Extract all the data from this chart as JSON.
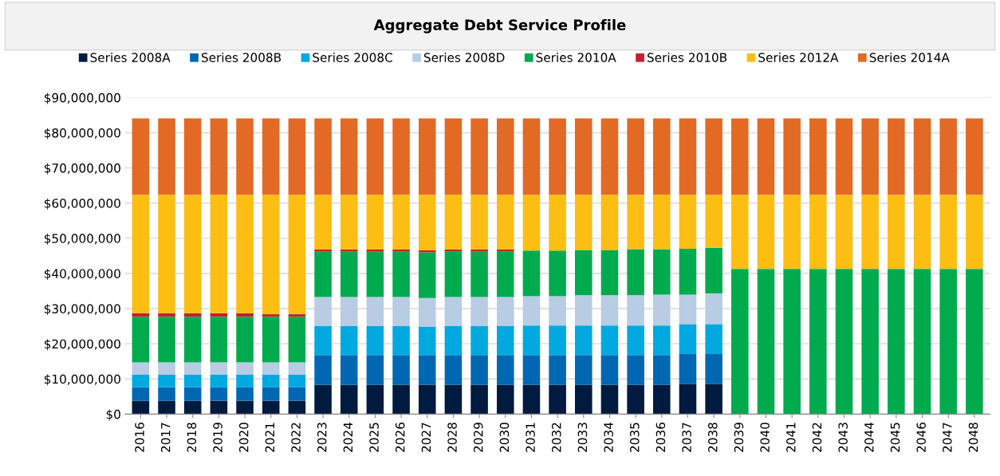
{
  "chart_data": {
    "type": "bar",
    "title": "Aggregate Debt Service Profile",
    "stacked": true,
    "grid": "y",
    "legend": "top",
    "categories": [
      "2016",
      "2017",
      "2018",
      "2019",
      "2020",
      "2021",
      "2022",
      "2023",
      "2024",
      "2025",
      "2026",
      "2027",
      "2028",
      "2029",
      "2030",
      "2031",
      "2032",
      "2033",
      "2034",
      "2035",
      "2036",
      "2037",
      "2038",
      "2039",
      "2040",
      "2041",
      "2042",
      "2043",
      "2044",
      "2045",
      "2046",
      "2047",
      "2048"
    ],
    "ylim": [
      0,
      90000000
    ],
    "yticks": [
      {
        "value": 0,
        "label": "$0"
      },
      {
        "value": 10000000,
        "label": "$10,000,000"
      },
      {
        "value": 20000000,
        "label": "$20,000,000"
      },
      {
        "value": 30000000,
        "label": "$30,000,000"
      },
      {
        "value": 40000000,
        "label": "$40,000,000"
      },
      {
        "value": 50000000,
        "label": "$50,000,000"
      },
      {
        "value": 60000000,
        "label": "$60,000,000"
      },
      {
        "value": 70000000,
        "label": "$70,000,000"
      },
      {
        "value": 80000000,
        "label": "$80,000,000"
      },
      {
        "value": 90000000,
        "label": "$90,000,000"
      }
    ],
    "series": [
      {
        "name": "Series 2008A",
        "color": "#001a40",
        "values": [
          3800000,
          3800000,
          3800000,
          3800000,
          3800000,
          3800000,
          3800000,
          8300000,
          8300000,
          8300000,
          8300000,
          8300000,
          8300000,
          8300000,
          8300000,
          8300000,
          8300000,
          8300000,
          8300000,
          8300000,
          8300000,
          8500000,
          8500000,
          null,
          null,
          null,
          null,
          null,
          null,
          null,
          null,
          null,
          null
        ]
      },
      {
        "name": "Series 2008B",
        "color": "#0068b3",
        "values": [
          3800000,
          3800000,
          3800000,
          3800000,
          3800000,
          3800000,
          3800000,
          8500000,
          8500000,
          8500000,
          8500000,
          8500000,
          8500000,
          8500000,
          8500000,
          8500000,
          8500000,
          8500000,
          8500000,
          8500000,
          8500000,
          8600000,
          8600000,
          null,
          null,
          null,
          null,
          null,
          null,
          null,
          null,
          null,
          null
        ]
      },
      {
        "name": "Series 2008C",
        "color": "#00a9e0",
        "values": [
          3600000,
          3600000,
          3600000,
          3600000,
          3600000,
          3600000,
          3600000,
          8300000,
          8300000,
          8300000,
          8300000,
          8000000,
          8300000,
          8300000,
          8300000,
          8400000,
          8400000,
          8400000,
          8400000,
          8400000,
          8400000,
          8500000,
          8500000,
          null,
          null,
          null,
          null,
          null,
          null,
          null,
          null,
          null,
          null
        ]
      },
      {
        "name": "Series 2008D",
        "color": "#b8cce4",
        "values": [
          3500000,
          3500000,
          3500000,
          3500000,
          3500000,
          3500000,
          3500000,
          8200000,
          8200000,
          8200000,
          8200000,
          8200000,
          8200000,
          8200000,
          8200000,
          8300000,
          8300000,
          8600000,
          8600000,
          8600000,
          8800000,
          8400000,
          8700000,
          null,
          null,
          null,
          null,
          null,
          null,
          null,
          null,
          null,
          null
        ]
      },
      {
        "name": "Series 2010A",
        "color": "#00ab4e",
        "values": [
          13000000,
          13000000,
          13000000,
          13000000,
          13000000,
          13000000,
          13000000,
          12900000,
          12900000,
          12900000,
          12900000,
          13000000,
          12900000,
          12900000,
          12900000,
          13000000,
          13000000,
          12900000,
          12900000,
          13100000,
          12900000,
          13000000,
          13000000,
          41300000,
          41300000,
          41300000,
          41300000,
          41300000,
          41300000,
          41300000,
          41300000,
          41300000,
          41300000
        ]
      },
      {
        "name": "Series 2010B",
        "color": "#c8202f",
        "values": [
          1000000,
          1000000,
          1000000,
          1000000,
          1000000,
          700000,
          700000,
          600000,
          600000,
          600000,
          600000,
          600000,
          600000,
          600000,
          600000,
          null,
          null,
          null,
          null,
          null,
          null,
          null,
          null,
          null,
          null,
          null,
          null,
          null,
          null,
          null,
          null,
          null,
          null
        ]
      },
      {
        "name": "Series 2012A",
        "color": "#fdbe14",
        "values": [
          33700000,
          33700000,
          33700000,
          33700000,
          33700000,
          34000000,
          34000000,
          15600000,
          15600000,
          15600000,
          15600000,
          15800000,
          15600000,
          15600000,
          15600000,
          15900000,
          15900000,
          15700000,
          15700000,
          15500000,
          15500000,
          15400000,
          15100000,
          21100000,
          21100000,
          21100000,
          21100000,
          21100000,
          21100000,
          21100000,
          21100000,
          21100000,
          21100000
        ]
      },
      {
        "name": "Series 2014A",
        "color": "#e26a25",
        "values": [
          21700000,
          21700000,
          21700000,
          21700000,
          21700000,
          21700000,
          21700000,
          21700000,
          21700000,
          21700000,
          21700000,
          21700000,
          21700000,
          21700000,
          21700000,
          21700000,
          21700000,
          21700000,
          21700000,
          21700000,
          21700000,
          21700000,
          21700000,
          21700000,
          21700000,
          21700000,
          21700000,
          21700000,
          21700000,
          21700000,
          21700000,
          21700000,
          21700000
        ]
      }
    ]
  }
}
